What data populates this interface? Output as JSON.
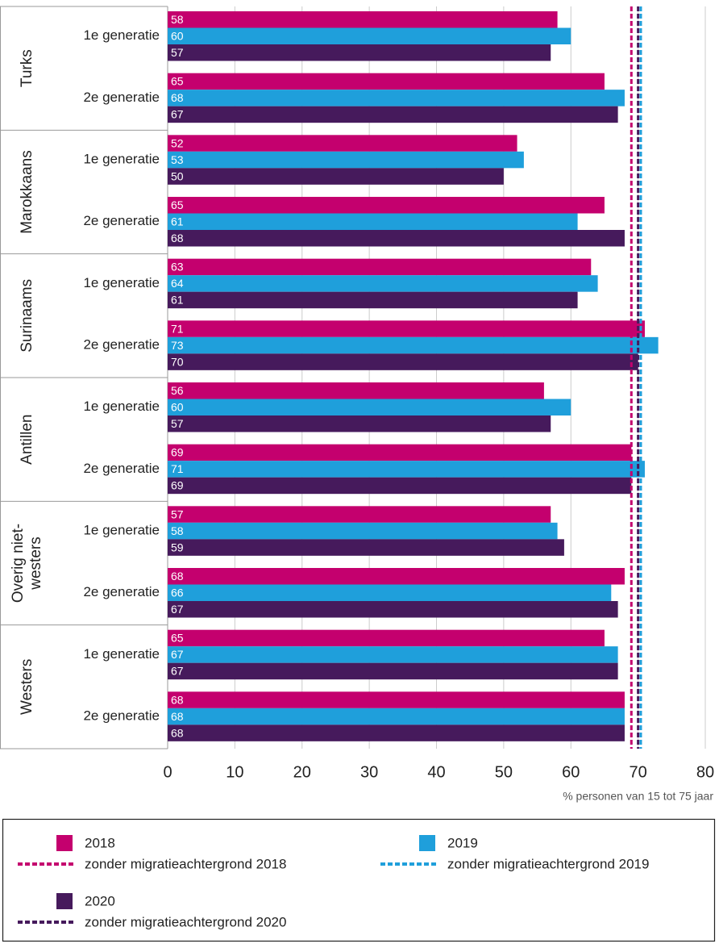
{
  "chart_data": {
    "type": "bar",
    "orientation": "horizontal",
    "groups": [
      [
        "Turks"
      ],
      [
        "Marokkaans"
      ],
      [
        "Surinaams"
      ],
      [
        "Antillen"
      ],
      [
        "Overig niet-",
        "westers"
      ],
      [
        "Westers"
      ]
    ],
    "categories": [
      "1e generatie",
      "2e generatie",
      "1e generatie",
      "2e generatie",
      "1e generatie",
      "2e generatie",
      "1e generatie",
      "2e generatie",
      "1e generatie",
      "2e generatie",
      "1e generatie",
      "2e generatie"
    ],
    "series": [
      {
        "name": "2018",
        "color": "#c4006e",
        "values": [
          58,
          65,
          52,
          65,
          63,
          71,
          56,
          69,
          57,
          68,
          65,
          68
        ]
      },
      {
        "name": "2019",
        "color": "#1f9fdb",
        "values": [
          60,
          68,
          53,
          61,
          64,
          73,
          60,
          71,
          58,
          66,
          67,
          68
        ]
      },
      {
        "name": "2020",
        "color": "#461a5c",
        "values": [
          57,
          67,
          50,
          68,
          61,
          70,
          57,
          69,
          59,
          67,
          67,
          68
        ]
      }
    ],
    "reference_lines": [
      {
        "name": "zonder migratieachtergrond 2018",
        "color": "#c4006e",
        "value": 69
      },
      {
        "name": "zonder migratieachtergrond 2019",
        "color": "#1f9fdb",
        "value": 70.4
      },
      {
        "name": "zonder migratieachtergrond 2020",
        "color": "#461a5c",
        "value": 70
      }
    ],
    "xlabel": "% personen van 15 tot 75 jaar",
    "xlim": [
      0,
      80
    ],
    "xticks": [
      0,
      10,
      20,
      30,
      40,
      50,
      60,
      70,
      80
    ],
    "grid": true
  }
}
